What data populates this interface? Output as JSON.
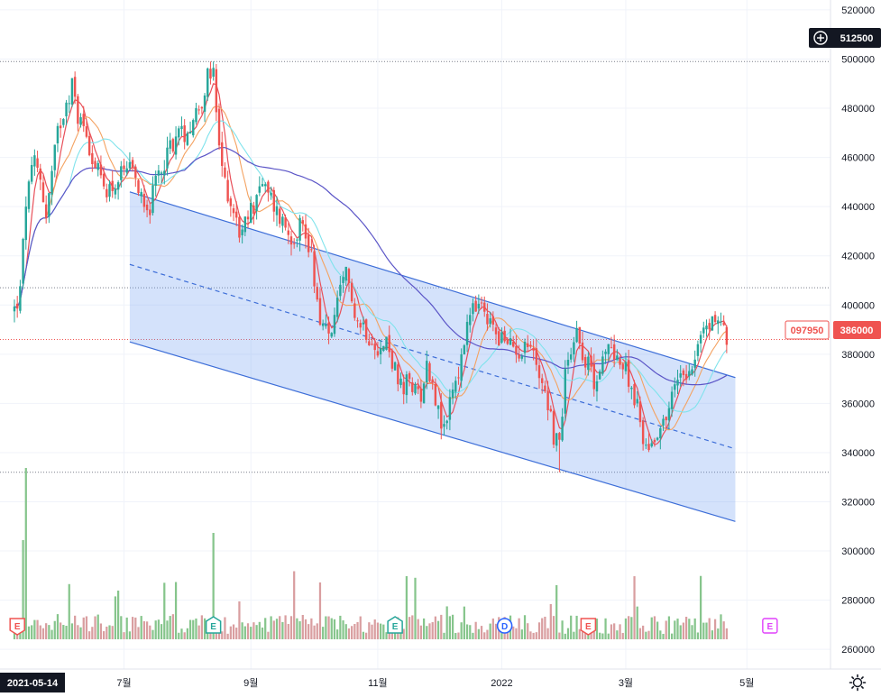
{
  "chart_data": {
    "type": "candlestick",
    "y_axis": {
      "ticks": [
        520000,
        500000,
        480000,
        460000,
        440000,
        420000,
        400000,
        380000,
        360000,
        340000,
        320000,
        300000,
        280000,
        260000
      ],
      "range": [
        252000,
        524000
      ]
    },
    "x_axis": {
      "ticks": [
        {
          "label": "7월",
          "x": 38
        },
        {
          "label": "9월",
          "x": 82
        },
        {
          "label": "11월",
          "x": 126
        },
        {
          "label": "2022",
          "x": 169
        },
        {
          "label": "3월",
          "x": 212
        },
        {
          "label": "5월",
          "x": 254
        }
      ],
      "start_label": "2021-05-14",
      "range": [
        -5,
        283
      ]
    },
    "price_tags": {
      "crosshair_price": "512500",
      "last_price": "386000",
      "left_value": "097950"
    },
    "colors": {
      "up": "#26a69a",
      "down": "#ef5350",
      "vol_up": "#86c58c",
      "vol_down": "#d99ea0",
      "channel_fill": "rgba(100,150,240,0.28)",
      "channel_line": "#3d6ed8",
      "ma_short": "#e8505a",
      "ma_mid": "#f4a261",
      "ma_long": "#7fe3ec",
      "ma_longest": "#5b55c7"
    },
    "horizontal_levels": [
      499000,
      407000,
      386000,
      332000
    ],
    "channel": {
      "start": {
        "x": 40,
        "upper": 446000,
        "lower": 385000
      },
      "end": {
        "x": 250,
        "upper": 370500,
        "lower": 312000
      },
      "midline_start": 416500,
      "midline_end": 341500
    },
    "events": [
      {
        "label": "E",
        "x": 1,
        "kind": "earnings-down"
      },
      {
        "label": "E",
        "x": 69,
        "kind": "earnings-up"
      },
      {
        "label": "E",
        "x": 132,
        "kind": "earnings-up"
      },
      {
        "label": "D",
        "x": 170,
        "kind": "dividend"
      },
      {
        "label": "E",
        "x": 199,
        "kind": "earnings-down"
      },
      {
        "label": "E",
        "x": 262,
        "kind": "earnings-future"
      }
    ],
    "anchors": [
      [
        0,
        398000
      ],
      [
        2,
        405000
      ],
      [
        4,
        442000
      ],
      [
        7,
        458000
      ],
      [
        9,
        452000
      ],
      [
        11,
        436000
      ],
      [
        15,
        470000
      ],
      [
        18,
        484000
      ],
      [
        20,
        489000
      ],
      [
        22,
        477000
      ],
      [
        25,
        470000
      ],
      [
        28,
        456000
      ],
      [
        31,
        448000
      ],
      [
        34,
        448000
      ],
      [
        37,
        452000
      ],
      [
        40,
        454000
      ],
      [
        44,
        446000
      ],
      [
        47,
        440000
      ],
      [
        50,
        453000
      ],
      [
        53,
        462000
      ],
      [
        56,
        469000
      ],
      [
        59,
        470000
      ],
      [
        62,
        476000
      ],
      [
        65,
        484000
      ],
      [
        67,
        492000
      ],
      [
        69,
        493000
      ],
      [
        70,
        478000
      ],
      [
        71,
        462000
      ],
      [
        73,
        450000
      ],
      [
        75,
        442000
      ],
      [
        77,
        434000
      ],
      [
        79,
        428000
      ],
      [
        81,
        436000
      ],
      [
        83,
        441000
      ],
      [
        85,
        450000
      ],
      [
        87,
        446000
      ],
      [
        89,
        443000
      ],
      [
        91,
        438000
      ],
      [
        93,
        434000
      ],
      [
        95,
        430000
      ],
      [
        97,
        428000
      ],
      [
        99,
        434000
      ],
      [
        101,
        428000
      ],
      [
        103,
        421000
      ],
      [
        105,
        402000
      ],
      [
        107,
        390000
      ],
      [
        109,
        388000
      ],
      [
        111,
        394000
      ],
      [
        113,
        404000
      ],
      [
        115,
        412000
      ],
      [
        117,
        405000
      ],
      [
        119,
        393000
      ],
      [
        121,
        392000
      ],
      [
        123,
        388000
      ],
      [
        125,
        386000
      ],
      [
        127,
        381000
      ],
      [
        129,
        385000
      ],
      [
        131,
        378000
      ],
      [
        133,
        368000
      ],
      [
        135,
        364000
      ],
      [
        137,
        371000
      ],
      [
        139,
        364000
      ],
      [
        141,
        365000
      ],
      [
        143,
        375000
      ],
      [
        145,
        370000
      ],
      [
        147,
        356000
      ],
      [
        149,
        348000
      ],
      [
        151,
        362000
      ],
      [
        153,
        370000
      ],
      [
        155,
        376000
      ],
      [
        157,
        392000
      ],
      [
        159,
        397000
      ],
      [
        161,
        400000
      ],
      [
        163,
        395000
      ],
      [
        165,
        392000
      ],
      [
        167,
        390000
      ],
      [
        169,
        386000
      ],
      [
        171,
        383000
      ],
      [
        173,
        384000
      ],
      [
        175,
        382000
      ],
      [
        177,
        384000
      ],
      [
        179,
        383000
      ],
      [
        181,
        376000
      ],
      [
        183,
        370000
      ],
      [
        185,
        361000
      ],
      [
        187,
        347000
      ],
      [
        189,
        343000
      ],
      [
        191,
        373000
      ],
      [
        193,
        384000
      ],
      [
        195,
        390000
      ],
      [
        197,
        382000
      ],
      [
        199,
        375000
      ],
      [
        201,
        370000
      ],
      [
        203,
        374000
      ],
      [
        205,
        379000
      ],
      [
        207,
        384000
      ],
      [
        209,
        380000
      ],
      [
        211,
        374000
      ],
      [
        213,
        371000
      ],
      [
        215,
        363000
      ],
      [
        217,
        352000
      ],
      [
        219,
        342000
      ],
      [
        221,
        344000
      ],
      [
        223,
        350000
      ],
      [
        225,
        352000
      ],
      [
        227,
        359000
      ],
      [
        229,
        366000
      ],
      [
        231,
        374000
      ],
      [
        233,
        374000
      ],
      [
        235,
        376000
      ],
      [
        237,
        384000
      ],
      [
        239,
        389000
      ],
      [
        241,
        392000
      ],
      [
        243,
        395000
      ],
      [
        245,
        393000
      ],
      [
        247,
        386000
      ]
    ]
  }
}
